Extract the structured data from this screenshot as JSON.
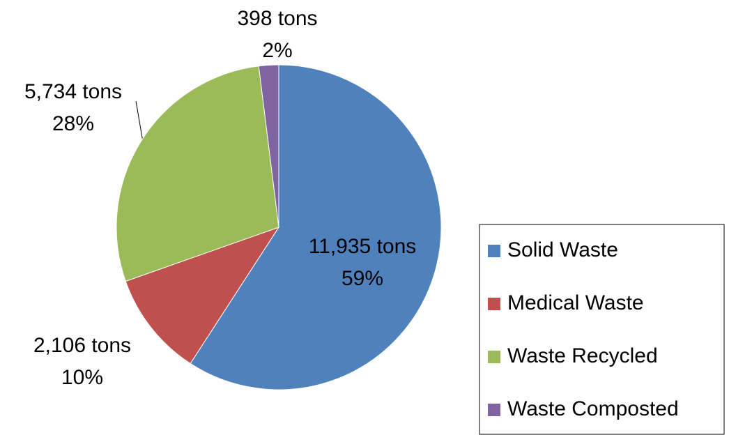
{
  "chart_data": {
    "type": "pie",
    "categories": [
      "Solid Waste",
      "Medical Waste",
      "Waste Recycled",
      "Waste Composted"
    ],
    "values": [
      11935,
      2106,
      5734,
      398
    ],
    "value_labels": [
      "11,935 tons",
      "2,106 tons",
      "5,734 tons",
      "398 tons"
    ],
    "percent_labels": [
      "59%",
      "10%",
      "28%",
      "2%"
    ],
    "colors": [
      "#4f81bd",
      "#c0504d",
      "#9bbb59",
      "#8064a2"
    ],
    "legend": "right"
  }
}
